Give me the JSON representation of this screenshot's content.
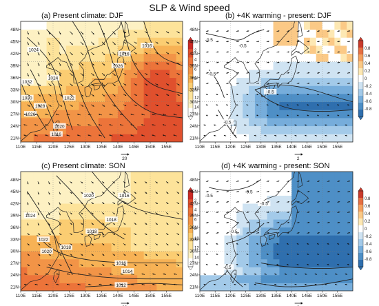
{
  "figure": {
    "title": "SLP & Wind speed"
  },
  "chart_data": [
    {
      "type": "heatmap",
      "id": "a",
      "title": "(a) Present climate: DJF",
      "variable": "wind speed shading with SLP contours and wind vectors",
      "xticks": [
        "110E",
        "115E",
        "120E",
        "125E",
        "130E",
        "135E",
        "140E",
        "145E",
        "150E",
        "155E"
      ],
      "yticks": [
        "21N",
        "24N",
        "27N",
        "30N",
        "33N",
        "36N",
        "39N",
        "42N",
        "45N",
        "48N"
      ],
      "xlim": [
        110,
        160
      ],
      "ylim": [
        20,
        50
      ],
      "colorbar": {
        "ticks": [
          "2",
          "4",
          "6",
          "8",
          "10",
          "12",
          "14"
        ],
        "range": [
          0,
          15
        ],
        "colors": [
          "#ffffff",
          "#fdf1c3",
          "#fde39a",
          "#fbcd72",
          "#f7b255",
          "#f29447",
          "#ec743a",
          "#e0502d",
          "#cc2a25"
        ]
      },
      "contour_labels": [
        "1032",
        "1024",
        "1030",
        "1028",
        "1026",
        "1024",
        "1022",
        "1020",
        "1016",
        "1016",
        "1026",
        "1016"
      ],
      "vector_reference": "20",
      "wind": {
        "pattern": "monsoon",
        "reference_length": 20
      },
      "field": {
        "pattern": "djf",
        "levels": [
          0,
          2,
          4,
          6,
          8,
          10,
          12,
          14
        ]
      }
    },
    {
      "type": "heatmap",
      "id": "b",
      "title": "(b) +4K warming - present: DJF",
      "variable": "difference shading with SLP contours and wind vectors",
      "xticks": [
        "110E",
        "115E",
        "120E",
        "125E",
        "130E",
        "135E",
        "140E",
        "145E",
        "150E",
        "155E"
      ],
      "yticks": [
        "21N",
        "24N",
        "27N",
        "30N",
        "33N",
        "36N",
        "39N",
        "42N",
        "45N",
        "48N"
      ],
      "xlim": [
        110,
        160
      ],
      "ylim": [
        20,
        50
      ],
      "colorbar": {
        "ticks": [
          "0.8",
          "0.6",
          "0.4",
          "0.2",
          "0",
          "-0.2",
          "-0.4",
          "-0.6",
          "-0.8"
        ],
        "range": [
          -0.9,
          0.9
        ],
        "colors": [
          "#2f6fae",
          "#4e8fc6",
          "#76addb",
          "#a3cae9",
          "#cfe3f2",
          "#ffffff",
          "#fde8b3",
          "#fbc986",
          "#f4a05e",
          "#e56f42",
          "#c93a2b"
        ]
      },
      "contour_labels": [
        "-0.5",
        "-0.5",
        "-0.5",
        "-0.5",
        "-0.5"
      ],
      "vector_reference": "2",
      "wind": {
        "pattern": "diff",
        "reference_length": 2
      },
      "field": {
        "pattern": "diff_djf"
      }
    },
    {
      "type": "heatmap",
      "id": "c",
      "title": "(c) Present climate: SON",
      "variable": "wind speed shading with SLP contours and wind vectors",
      "xticks": [
        "110E",
        "115E",
        "120E",
        "125E",
        "130E",
        "135E",
        "140E",
        "145E",
        "150E",
        "155E"
      ],
      "yticks": [
        "21N",
        "24N",
        "27N",
        "30N",
        "33N",
        "36N",
        "39N",
        "42N",
        "45N",
        "48N"
      ],
      "xlim": [
        110,
        160
      ],
      "ylim": [
        20,
        50
      ],
      "colorbar": {
        "ticks": [
          "2",
          "4",
          "6",
          "8",
          "10",
          "12",
          "14"
        ],
        "range": [
          0,
          15
        ],
        "colors": [
          "#ffffff",
          "#fdf1c3",
          "#fde39a",
          "#fbcd72",
          "#f7b255",
          "#f29447",
          "#ec743a",
          "#e0502d",
          "#cc2a25"
        ]
      },
      "contour_labels": [
        "1020",
        "1024",
        "1022",
        "1018",
        "1018",
        "1018",
        "1016",
        "1016",
        "1014",
        "1012",
        "1020"
      ],
      "vector_reference": "20",
      "wind": {
        "pattern": "son",
        "reference_length": 20
      },
      "field": {
        "pattern": "son",
        "levels": [
          0,
          2,
          4,
          6,
          8,
          10,
          12,
          14
        ]
      }
    },
    {
      "type": "heatmap",
      "id": "d",
      "title": "(d) +4K warming - present: SON",
      "variable": "difference shading with SLP contours and wind vectors",
      "xticks": [
        "110E",
        "115E",
        "120E",
        "125E",
        "130E",
        "135E",
        "140E",
        "145E",
        "150E",
        "155E"
      ],
      "yticks": [
        "21N",
        "24N",
        "27N",
        "30N",
        "33N",
        "36N",
        "39N",
        "42N",
        "45N",
        "48N"
      ],
      "xlim": [
        110,
        160
      ],
      "ylim": [
        20,
        50
      ],
      "colorbar": {
        "ticks": [
          "0.8",
          "0.6",
          "0.4",
          "0.2",
          "0",
          "-0.2",
          "-0.4",
          "-0.6",
          "-0.8"
        ],
        "range": [
          -0.9,
          0.9
        ],
        "colors": [
          "#2f6fae",
          "#4e8fc6",
          "#76addb",
          "#a3cae9",
          "#cfe3f2",
          "#ffffff",
          "#fde8b3",
          "#fbc986",
          "#f4a05e",
          "#e56f42",
          "#c93a2b"
        ]
      },
      "contour_labels": [
        "-0.5",
        "-0.5",
        "-0.5",
        "-0.5",
        "-0.5"
      ],
      "vector_reference": "2",
      "wind": {
        "pattern": "diff",
        "reference_length": 2
      },
      "field": {
        "pattern": "diff_son"
      }
    }
  ]
}
